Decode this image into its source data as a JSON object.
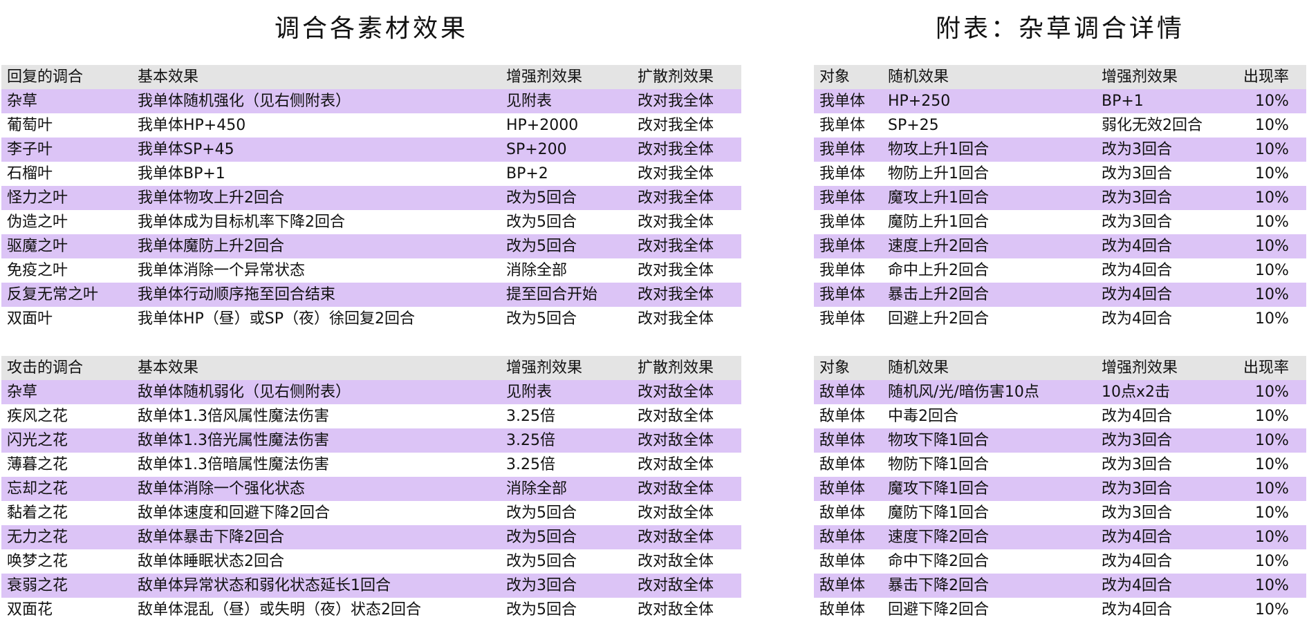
{
  "left": {
    "title": "调合各素材效果",
    "tables": [
      {
        "header": [
          "回复的调合",
          "基本效果",
          "增强剂效果",
          "扩散剂效果"
        ],
        "rows": [
          [
            "杂草",
            "我单体随机强化（见右侧附表）",
            "见附表",
            "改对我全体"
          ],
          [
            "葡萄叶",
            "我单体HP+450",
            "HP+2000",
            "改对我全体"
          ],
          [
            "李子叶",
            "我单体SP+45",
            "SP+200",
            "改对我全体"
          ],
          [
            "石榴叶",
            "我单体BP+1",
            "BP+2",
            "改对我全体"
          ],
          [
            "怪力之叶",
            "我单体物攻上升2回合",
            "改为5回合",
            "改对我全体"
          ],
          [
            "伪造之叶",
            "我单体成为目标机率下降2回合",
            "改为5回合",
            "改对我全体"
          ],
          [
            "驱魔之叶",
            "我单体魔防上升2回合",
            "改为5回合",
            "改对我全体"
          ],
          [
            "免疫之叶",
            "我单体消除一个异常状态",
            "消除全部",
            "改对我全体"
          ],
          [
            "反复无常之叶",
            "我单体行动顺序拖至回合结束",
            "提至回合开始",
            "改对我全体"
          ],
          [
            "双面叶",
            "我单体HP（昼）或SP（夜）徐回复2回合",
            "改为5回合",
            "改对我全体"
          ]
        ]
      },
      {
        "header": [
          "攻击的调合",
          "基本效果",
          "增强剂效果",
          "扩散剂效果"
        ],
        "rows": [
          [
            "杂草",
            "敌单体随机弱化（见右侧附表）",
            "见附表",
            "改对敌全体"
          ],
          [
            "疾风之花",
            "敌单体1.3倍风属性魔法伤害",
            "3.25倍",
            "改对敌全体"
          ],
          [
            "闪光之花",
            "敌单体1.3倍光属性魔法伤害",
            "3.25倍",
            "改对敌全体"
          ],
          [
            "薄暮之花",
            "敌单体1.3倍暗属性魔法伤害",
            "3.25倍",
            "改对敌全体"
          ],
          [
            "忘却之花",
            "敌单体消除一个强化状态",
            "消除全部",
            "改对敌全体"
          ],
          [
            "黏着之花",
            "敌单体速度和回避下降2回合",
            "改为5回合",
            "改对敌全体"
          ],
          [
            "无力之花",
            "敌单体暴击下降2回合",
            "改为5回合",
            "改对敌全体"
          ],
          [
            "唤梦之花",
            "敌单体睡眠状态2回合",
            "改为5回合",
            "改对敌全体"
          ],
          [
            "衰弱之花",
            "敌单体异常状态和弱化状态延长1回合",
            "改为3回合",
            "改对敌全体"
          ],
          [
            "双面花",
            "敌单体混乱（昼）或失明（夜）状态2回合",
            "改为5回合",
            "改对敌全体"
          ]
        ]
      }
    ]
  },
  "right": {
    "title": "附表：杂草调合详情",
    "tables": [
      {
        "header": [
          "对象",
          "随机效果",
          "增强剂效果",
          "出现率"
        ],
        "rows": [
          [
            "我单体",
            "HP+250",
            "BP+1",
            "10%"
          ],
          [
            "我单体",
            "SP+25",
            "弱化无效2回合",
            "10%"
          ],
          [
            "我单体",
            "物攻上升1回合",
            "改为3回合",
            "10%"
          ],
          [
            "我单体",
            "物防上升1回合",
            "改为3回合",
            "10%"
          ],
          [
            "我单体",
            "魔攻上升1回合",
            "改为3回合",
            "10%"
          ],
          [
            "我单体",
            "魔防上升1回合",
            "改为3回合",
            "10%"
          ],
          [
            "我单体",
            "速度上升2回合",
            "改为4回合",
            "10%"
          ],
          [
            "我单体",
            "命中上升2回合",
            "改为4回合",
            "10%"
          ],
          [
            "我单体",
            "暴击上升2回合",
            "改为4回合",
            "10%"
          ],
          [
            "我单体",
            "回避上升2回合",
            "改为4回合",
            "10%"
          ]
        ]
      },
      {
        "header": [
          "对象",
          "随机效果",
          "增强剂效果",
          "出现率"
        ],
        "rows": [
          [
            "敌单体",
            "随机风/光/暗伤害10点",
            "10点x2击",
            "10%"
          ],
          [
            "敌单体",
            "中毒2回合",
            "改为4回合",
            "10%"
          ],
          [
            "敌单体",
            "物攻下降1回合",
            "改为3回合",
            "10%"
          ],
          [
            "敌单体",
            "物防下降1回合",
            "改为3回合",
            "10%"
          ],
          [
            "敌单体",
            "魔攻下降1回合",
            "改为3回合",
            "10%"
          ],
          [
            "敌单体",
            "魔防下降1回合",
            "改为3回合",
            "10%"
          ],
          [
            "敌单体",
            "速度下降2回合",
            "改为4回合",
            "10%"
          ],
          [
            "敌单体",
            "命中下降2回合",
            "改为4回合",
            "10%"
          ],
          [
            "敌单体",
            "暴击下降2回合",
            "改为4回合",
            "10%"
          ],
          [
            "敌单体",
            "回避下降2回合",
            "改为4回合",
            "10%"
          ]
        ]
      }
    ]
  }
}
